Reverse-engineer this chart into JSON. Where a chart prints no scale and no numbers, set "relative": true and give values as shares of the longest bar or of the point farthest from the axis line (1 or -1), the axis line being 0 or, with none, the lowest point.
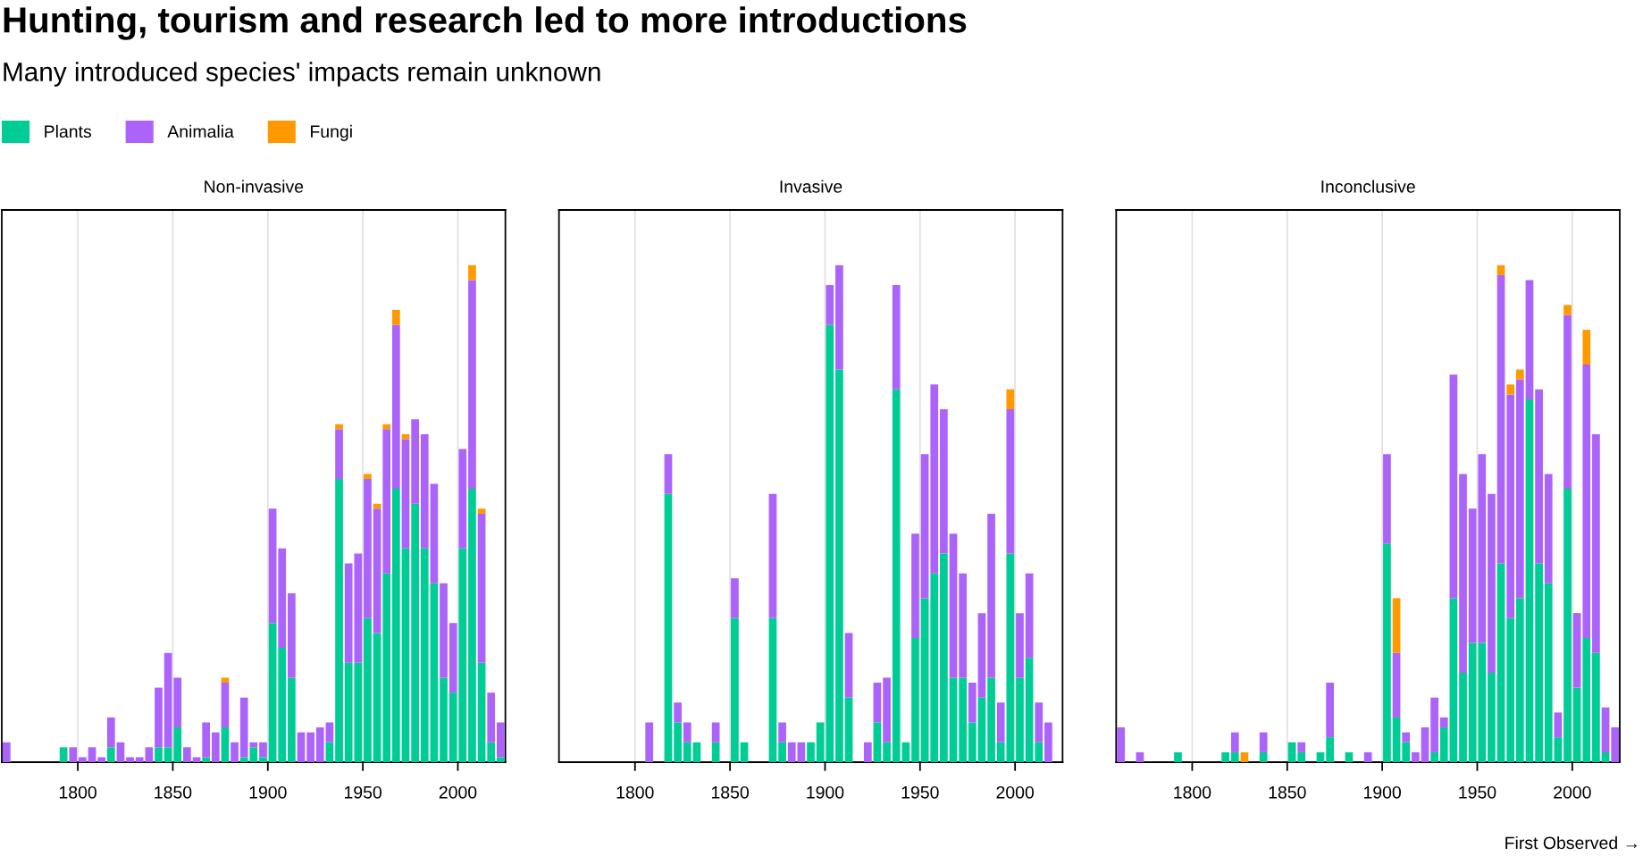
{
  "chart_data": [
    {
      "type": "bar",
      "title": "Non-invasive",
      "stacked": true,
      "relative": true,
      "legend": "top left",
      "grid": "x",
      "tick_labels": "x",
      "annotations": [
        "Hunting, tourism and research led to more introductions",
        "Many introduced species' impacts remain unknown"
      ],
      "xlim": [
        1760,
        2025
      ],
      "xticks": [
        1800,
        1850,
        1900,
        1950,
        2000
      ],
      "x": [
        1762.5,
        1767.5,
        1772.5,
        1777.5,
        1782.5,
        1787.5,
        1792.5,
        1797.5,
        1802.5,
        1807.5,
        1812.5,
        1817.5,
        1822.5,
        1827.5,
        1832.5,
        1837.5,
        1842.5,
        1847.5,
        1852.5,
        1857.5,
        1862.5,
        1867.5,
        1872.5,
        1877.5,
        1882.5,
        1887.5,
        1892.5,
        1897.5,
        1902.5,
        1907.5,
        1912.5,
        1917.5,
        1922.5,
        1927.5,
        1932.5,
        1937.5,
        1942.5,
        1947.5,
        1952.5,
        1957.5,
        1962.5,
        1967.5,
        1972.5,
        1977.5,
        1982.5,
        1987.5,
        1992.5,
        1997.5,
        2002.5,
        2007.5,
        2012.5,
        2017.5,
        2022.5
      ],
      "series": [
        {
          "name": "Plants",
          "color": "#00cc96",
          "values": [
            null,
            null,
            null,
            null,
            null,
            null,
            0.03,
            null,
            null,
            null,
            null,
            0.03,
            null,
            null,
            null,
            null,
            0.03,
            0.03,
            0.07,
            null,
            null,
            0.01,
            null,
            0.07,
            null,
            0.01,
            0.03,
            0.01,
            0.28,
            0.23,
            0.17,
            null,
            null,
            null,
            0.04,
            0.57,
            0.2,
            0.2,
            0.29,
            0.26,
            0.38,
            0.55,
            0.43,
            0.52,
            0.43,
            0.36,
            0.17,
            0.14,
            0.43,
            0.55,
            0.2,
            0.04,
            0.01
          ]
        },
        {
          "name": "Animalia",
          "color": "#ab63fa",
          "values": [
            0.04,
            null,
            null,
            null,
            null,
            null,
            null,
            0.03,
            0.01,
            0.03,
            0.01,
            0.06,
            0.04,
            0.01,
            0.01,
            0.03,
            0.12,
            0.19,
            0.1,
            0.03,
            0.01,
            0.07,
            0.06,
            0.09,
            0.04,
            0.12,
            0.01,
            0.03,
            0.23,
            0.2,
            0.17,
            0.06,
            0.06,
            0.07,
            0.04,
            0.1,
            0.2,
            0.22,
            0.28,
            0.25,
            0.29,
            0.33,
            0.22,
            0.17,
            0.23,
            0.2,
            0.19,
            0.14,
            0.2,
            0.42,
            0.3,
            0.1,
            0.07
          ]
        },
        {
          "name": "Fungi",
          "color": "#ff9900",
          "values": [
            null,
            null,
            null,
            null,
            null,
            null,
            null,
            null,
            null,
            null,
            null,
            null,
            null,
            null,
            null,
            null,
            null,
            null,
            null,
            null,
            null,
            null,
            null,
            0.01,
            null,
            null,
            null,
            null,
            null,
            null,
            null,
            null,
            null,
            null,
            null,
            0.01,
            null,
            null,
            0.01,
            0.01,
            0.01,
            0.03,
            0.01,
            null,
            null,
            null,
            null,
            null,
            null,
            0.03,
            0.01,
            null,
            null
          ]
        }
      ]
    },
    {
      "type": "bar",
      "title": "Invasive",
      "stacked": true,
      "relative": true,
      "grid": "x",
      "tick_labels": "x",
      "xlim": [
        1760,
        2025
      ],
      "xticks": [
        1800,
        1850,
        1900,
        1950,
        2000
      ],
      "x": [
        1807.5,
        1812.5,
        1817.5,
        1822.5,
        1827.5,
        1832.5,
        1837.5,
        1842.5,
        1847.5,
        1852.5,
        1857.5,
        1862.5,
        1867.5,
        1872.5,
        1877.5,
        1882.5,
        1887.5,
        1892.5,
        1897.5,
        1902.5,
        1907.5,
        1912.5,
        1917.5,
        1922.5,
        1927.5,
        1932.5,
        1937.5,
        1942.5,
        1947.5,
        1952.5,
        1957.5,
        1962.5,
        1967.5,
        1972.5,
        1977.5,
        1982.5,
        1987.5,
        1992.5,
        1997.5,
        2002.5,
        2007.5,
        2012.5,
        2017.5
      ],
      "series": [
        {
          "name": "Plants",
          "color": "#00cc96",
          "values": [
            null,
            null,
            0.54,
            0.08,
            0.04,
            0.04,
            null,
            0.04,
            null,
            0.29,
            0.04,
            null,
            null,
            0.29,
            0.04,
            null,
            null,
            0.04,
            0.08,
            0.88,
            0.79,
            0.13,
            null,
            null,
            0.08,
            0.04,
            0.75,
            0.04,
            0.25,
            0.33,
            0.38,
            0.42,
            0.17,
            0.17,
            0.08,
            0.13,
            0.17,
            0.04,
            0.42,
            0.17,
            0.21,
            0.04,
            null
          ]
        },
        {
          "name": "Animalia",
          "color": "#ab63fa",
          "values": [
            0.08,
            null,
            0.08,
            0.04,
            0.04,
            null,
            null,
            0.04,
            null,
            0.08,
            null,
            null,
            null,
            0.25,
            0.04,
            0.04,
            0.04,
            null,
            null,
            0.08,
            0.21,
            0.13,
            null,
            0.04,
            0.08,
            0.13,
            0.21,
            null,
            0.21,
            0.29,
            0.38,
            0.29,
            0.29,
            0.21,
            0.08,
            0.17,
            0.33,
            0.08,
            0.29,
            0.13,
            0.17,
            0.08,
            0.08
          ]
        },
        {
          "name": "Fungi",
          "color": "#ff9900",
          "values": [
            null,
            null,
            null,
            null,
            null,
            null,
            null,
            null,
            null,
            null,
            null,
            null,
            null,
            null,
            null,
            null,
            null,
            null,
            null,
            null,
            null,
            null,
            null,
            null,
            null,
            null,
            null,
            null,
            null,
            null,
            null,
            null,
            null,
            null,
            null,
            null,
            null,
            null,
            0.04,
            null,
            null,
            null,
            null
          ]
        }
      ]
    },
    {
      "type": "bar",
      "title": "Inconclusive",
      "xlabel": "First Observed →",
      "stacked": true,
      "relative": true,
      "grid": "x",
      "tick_labels": "x",
      "xlim": [
        1760,
        2025
      ],
      "xticks": [
        1800,
        1850,
        1900,
        1950,
        2000
      ],
      "x": [
        1762.5,
        1767.5,
        1772.5,
        1777.5,
        1782.5,
        1787.5,
        1792.5,
        1797.5,
        1802.5,
        1807.5,
        1812.5,
        1817.5,
        1822.5,
        1827.5,
        1832.5,
        1837.5,
        1842.5,
        1847.5,
        1852.5,
        1857.5,
        1862.5,
        1867.5,
        1872.5,
        1877.5,
        1882.5,
        1887.5,
        1892.5,
        1897.5,
        1902.5,
        1907.5,
        1912.5,
        1917.5,
        1922.5,
        1927.5,
        1932.5,
        1937.5,
        1942.5,
        1947.5,
        1952.5,
        1957.5,
        1962.5,
        1967.5,
        1972.5,
        1977.5,
        1982.5,
        1987.5,
        1992.5,
        1997.5,
        2002.5,
        2007.5,
        2012.5,
        2017.5,
        2022.5
      ],
      "series": [
        {
          "name": "Plants",
          "color": "#00cc96",
          "values": [
            null,
            null,
            null,
            null,
            null,
            null,
            0.02,
            null,
            null,
            null,
            null,
            0.02,
            0.02,
            null,
            null,
            0.02,
            null,
            null,
            0.04,
            0.02,
            null,
            0.02,
            0.05,
            null,
            0.02,
            null,
            null,
            null,
            0.44,
            0.09,
            0.04,
            null,
            null,
            0.02,
            0.07,
            0.33,
            0.18,
            0.24,
            0.24,
            0.18,
            0.4,
            0.29,
            0.33,
            0.73,
            0.4,
            0.36,
            0.05,
            0.55,
            0.15,
            0.25,
            0.22,
            0.02,
            null
          ]
        },
        {
          "name": "Animalia",
          "color": "#ab63fa",
          "values": [
            0.07,
            null,
            0.02,
            null,
            null,
            null,
            null,
            null,
            null,
            null,
            null,
            null,
            0.04,
            null,
            null,
            0.04,
            null,
            null,
            null,
            0.02,
            null,
            null,
            0.11,
            null,
            null,
            null,
            0.02,
            null,
            0.18,
            0.13,
            0.02,
            0.02,
            0.07,
            0.11,
            0.02,
            0.45,
            0.4,
            0.27,
            0.38,
            0.36,
            0.58,
            0.45,
            0.44,
            0.24,
            0.35,
            0.22,
            0.05,
            0.35,
            0.15,
            0.55,
            0.44,
            0.09,
            0.07
          ]
        },
        {
          "name": "Fungi",
          "color": "#ff9900",
          "values": [
            null,
            null,
            null,
            null,
            null,
            null,
            null,
            null,
            null,
            null,
            null,
            null,
            null,
            0.02,
            null,
            null,
            null,
            null,
            null,
            null,
            null,
            null,
            null,
            null,
            null,
            null,
            null,
            null,
            null,
            0.11,
            null,
            null,
            null,
            null,
            null,
            null,
            null,
            null,
            null,
            null,
            0.02,
            0.02,
            0.02,
            null,
            null,
            null,
            null,
            0.02,
            null,
            0.07,
            null,
            null,
            null
          ]
        }
      ]
    }
  ]
}
